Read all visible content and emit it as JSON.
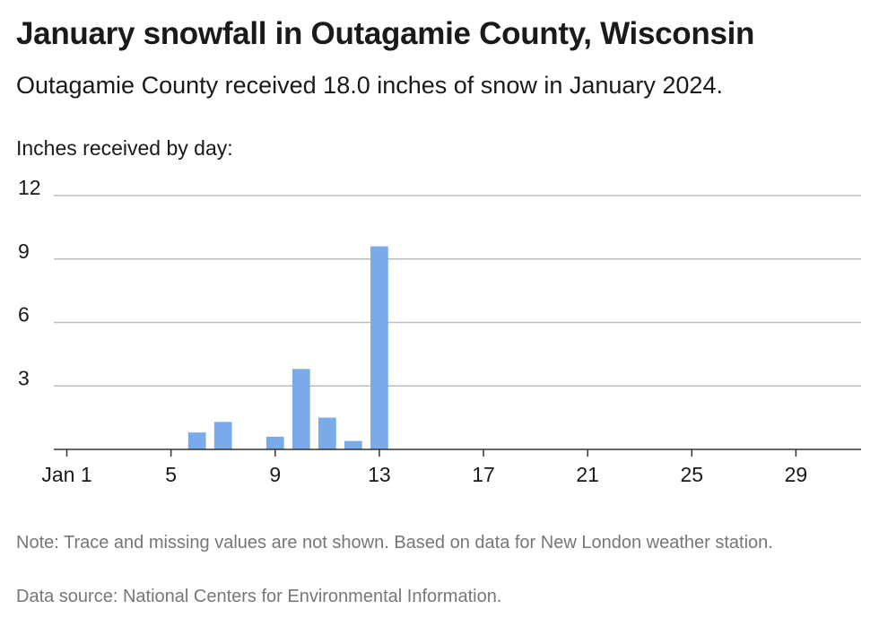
{
  "title": "January snowfall in Outagamie County, Wisconsin",
  "subtitle": "Outagamie County received 18.0 inches of snow in January 2024.",
  "note": "Note: Trace and missing values are not shown. Based on data for New London weather station.",
  "source": "Data source: National Centers for Environmental Information.",
  "chart_data": {
    "type": "bar",
    "ylabel": "Inches received by day:",
    "xlabel": "",
    "x": [
      1,
      2,
      3,
      4,
      5,
      6,
      7,
      8,
      9,
      10,
      11,
      12,
      13,
      14,
      15,
      16,
      17,
      18,
      19,
      20,
      21,
      22,
      23,
      24,
      25,
      26,
      27,
      28,
      29,
      30,
      31
    ],
    "values": [
      0,
      0,
      0,
      0,
      0,
      0.8,
      1.3,
      0,
      0.6,
      3.8,
      1.5,
      0.4,
      9.6,
      0,
      0,
      0,
      0,
      0,
      0,
      0,
      0,
      0,
      0,
      0,
      0,
      0,
      0,
      0,
      0,
      0,
      0
    ],
    "x_ticks": [
      {
        "x": 1,
        "label": "Jan 1"
      },
      {
        "x": 5,
        "label": "5"
      },
      {
        "x": 9,
        "label": "9"
      },
      {
        "x": 13,
        "label": "13"
      },
      {
        "x": 17,
        "label": "17"
      },
      {
        "x": 21,
        "label": "21"
      },
      {
        "x": 25,
        "label": "25"
      },
      {
        "x": 29,
        "label": "29"
      }
    ],
    "y_ticks": [
      3,
      6,
      9,
      12
    ],
    "ylim": [
      0,
      12
    ],
    "xlim": [
      0.5,
      31.5
    ],
    "grid": true,
    "bar_color": "#7aaaea",
    "grid_color": "#bdbdbd",
    "axis_color": "#333333"
  }
}
